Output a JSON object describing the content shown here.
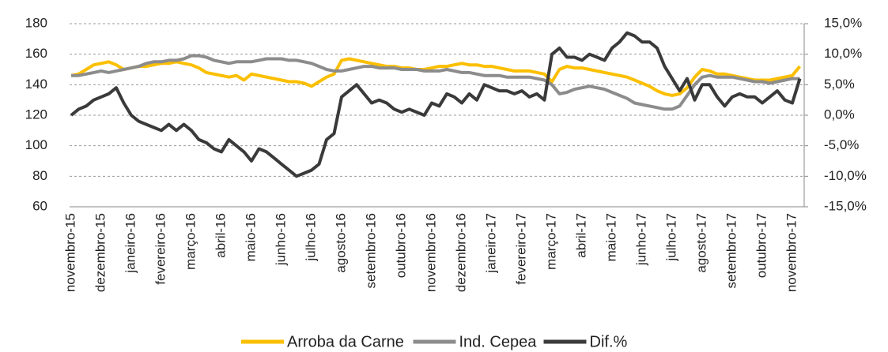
{
  "chart_data": {
    "type": "line",
    "categories": [
      "novembro-15",
      null,
      null,
      null,
      "dezembro-15",
      null,
      null,
      null,
      "janeiro-16",
      null,
      null,
      null,
      "fevereiro-16",
      null,
      null,
      null,
      "março-16",
      null,
      null,
      null,
      "abril-16",
      null,
      null,
      null,
      "maio-16",
      null,
      null,
      null,
      "junho-16",
      null,
      null,
      null,
      "julho-16",
      null,
      null,
      null,
      "agosto-16",
      null,
      null,
      null,
      "setembro-16",
      null,
      null,
      null,
      "outubro-16",
      null,
      null,
      null,
      "novembro-16",
      null,
      null,
      null,
      "dezembro-16",
      null,
      null,
      null,
      "janeiro-17",
      null,
      null,
      null,
      "fevereiro-17",
      null,
      null,
      null,
      "março-17",
      null,
      null,
      null,
      "abril-17",
      null,
      null,
      null,
      "maio-17",
      null,
      null,
      null,
      "junho-17",
      null,
      null,
      null,
      "julho-17",
      null,
      null,
      null,
      "agosto-17",
      null,
      null,
      null,
      "setembro-17",
      null,
      null,
      null,
      "outubro-17",
      null,
      null,
      null,
      "novembro-17",
      null
    ],
    "series": [
      {
        "name": "Arroba da Carne",
        "color": "#fbbf00",
        "values": [
          146,
          147,
          150,
          153,
          154,
          155,
          153,
          150,
          151,
          152,
          152,
          153,
          154,
          154,
          155,
          154,
          153,
          151,
          148,
          147,
          146,
          145,
          146,
          143,
          147,
          146,
          145,
          144,
          143,
          142,
          142,
          141,
          139,
          142,
          145,
          147,
          156,
          157,
          156,
          155,
          154,
          153,
          152,
          152,
          151,
          151,
          150,
          150,
          151,
          152,
          152,
          153,
          154,
          153,
          153,
          152,
          152,
          151,
          150,
          149,
          149,
          149,
          148,
          147,
          142,
          150,
          152,
          151,
          151,
          150,
          149,
          148,
          147,
          146,
          145,
          143,
          141,
          139,
          136,
          134,
          133,
          134,
          138,
          145,
          150,
          149,
          147,
          147,
          146,
          145,
          144,
          143,
          143,
          143,
          144,
          145,
          146,
          152
        ]
      },
      {
        "name": "Ind. Cepea",
        "color": "#8c8c8c",
        "values": [
          146,
          146,
          147,
          148,
          149,
          148,
          149,
          150,
          151,
          152,
          154,
          155,
          155,
          156,
          156,
          157,
          159,
          159,
          158,
          156,
          155,
          154,
          155,
          155,
          155,
          156,
          157,
          157,
          157,
          156,
          156,
          155,
          154,
          152,
          150,
          149,
          149,
          150,
          151,
          152,
          152,
          151,
          151,
          151,
          150,
          150,
          150,
          149,
          149,
          149,
          150,
          149,
          148,
          148,
          147,
          146,
          146,
          146,
          145,
          145,
          145,
          145,
          144,
          143,
          140,
          134,
          135,
          137,
          138,
          139,
          138,
          137,
          135,
          133,
          131,
          128,
          127,
          126,
          125,
          124,
          124,
          126,
          133,
          140,
          145,
          146,
          145,
          145,
          145,
          144,
          143,
          142,
          142,
          141,
          142,
          143,
          144,
          144
        ]
      },
      {
        "name": "Dif.%",
        "color": "#3a3a3a",
        "axis": "y2",
        "values": [
          0,
          1,
          1.5,
          2.5,
          3,
          3.5,
          4.5,
          2,
          0,
          -1,
          -1.5,
          -2,
          -2.5,
          -1.5,
          -2.5,
          -1.5,
          -2.5,
          -4,
          -4.5,
          -5.5,
          -6,
          -4,
          -5,
          -6,
          -7.5,
          -5.5,
          -6,
          -7,
          -8,
          -9,
          -10,
          -9.5,
          -9,
          -8,
          -4,
          -3,
          3,
          4,
          5,
          3.5,
          2,
          2.5,
          2,
          1,
          0.5,
          1,
          0.5,
          0,
          2,
          1.5,
          3.5,
          3,
          2,
          3.5,
          2.5,
          5,
          4.5,
          4,
          4,
          3.5,
          4,
          3,
          3.5,
          2.5,
          10,
          11,
          9.5,
          9.5,
          9,
          10,
          9.5,
          9,
          11,
          12,
          13.5,
          13,
          12,
          12,
          11,
          8,
          6,
          4,
          6,
          2.5,
          5,
          5,
          3,
          1.5,
          3,
          3.5,
          3,
          3,
          2,
          3,
          4,
          2.5,
          2,
          6
        ]
      }
    ],
    "ylim": [
      60,
      180
    ],
    "yticks": [
      60,
      80,
      100,
      120,
      140,
      160,
      180
    ],
    "y2lim": [
      -15,
      15
    ],
    "y2ticks": [
      {
        "value": -15,
        "label": "-15,0%"
      },
      {
        "value": -10,
        "label": "-10,0%"
      },
      {
        "value": -5,
        "label": "-5,0%"
      },
      {
        "value": 0,
        "label": "0,0%"
      },
      {
        "value": 5,
        "label": "5,0%"
      },
      {
        "value": 10,
        "label": "10,0%"
      },
      {
        "value": 15,
        "label": "15,0%"
      }
    ],
    "grid": true,
    "legend": "bottom"
  }
}
